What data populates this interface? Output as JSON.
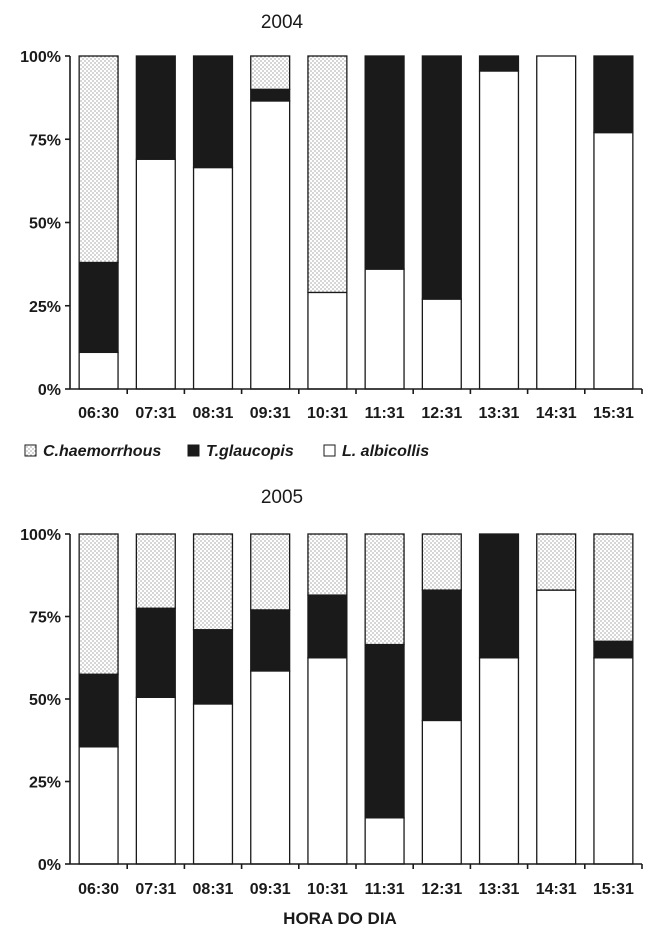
{
  "chart_data": [
    {
      "type": "bar",
      "stacked": true,
      "title": "2004",
      "categories": [
        "06:30",
        "07:31",
        "08:31",
        "09:31",
        "10:31",
        "11:31",
        "12:31",
        "13:31",
        "14:31",
        "15:31"
      ],
      "yticks": [
        "0%",
        "25%",
        "50%",
        "75%",
        "100%"
      ],
      "ylim": [
        0,
        100
      ],
      "series": [
        {
          "name": "L. albicollis",
          "fill": "white",
          "values": [
            11,
            69,
            66.5,
            86.5,
            29,
            36,
            27,
            95.5,
            100,
            77
          ]
        },
        {
          "name": "T.glaucopis",
          "fill": "black",
          "values": [
            27,
            31,
            33.5,
            3.5,
            0,
            64,
            73,
            4.5,
            0,
            23
          ]
        },
        {
          "name": "C.haemorrhous",
          "fill": "dotted",
          "values": [
            62,
            0,
            0,
            10,
            71,
            0,
            0,
            0,
            0,
            0
          ]
        }
      ]
    },
    {
      "type": "bar",
      "stacked": true,
      "title": "2005",
      "categories": [
        "06:30",
        "07:31",
        "08:31",
        "09:31",
        "10:31",
        "11:31",
        "12:31",
        "13:31",
        "14:31",
        "15:31"
      ],
      "yticks": [
        "0%",
        "25%",
        "50%",
        "75%",
        "100%"
      ],
      "ylim": [
        0,
        100
      ],
      "xlabel": "HORA DO DIA",
      "series": [
        {
          "name": "L. albicollis",
          "fill": "white",
          "values": [
            35.5,
            50.5,
            48.5,
            58.5,
            62.5,
            14,
            43.5,
            62.5,
            83,
            62.5
          ]
        },
        {
          "name": "T.glaucopis",
          "fill": "black",
          "values": [
            22,
            27,
            22.5,
            18.5,
            19,
            52.5,
            39.5,
            37.5,
            0,
            5
          ]
        },
        {
          "name": "C.haemorrhous",
          "fill": "dotted",
          "values": [
            42.5,
            22.5,
            29,
            23,
            18.5,
            33.5,
            17,
            0,
            17,
            32.5
          ]
        }
      ]
    }
  ],
  "legend": [
    {
      "label": "C.haemorrhous",
      "fill": "dotted"
    },
    {
      "label": "T.glaucopis",
      "fill": "black"
    },
    {
      "label": "L. albicollis",
      "fill": "white"
    }
  ],
  "colors": {
    "black_fill": "#1a1a1a",
    "white_fill": "#ffffff",
    "dot_fill": "#6e6e6e"
  }
}
